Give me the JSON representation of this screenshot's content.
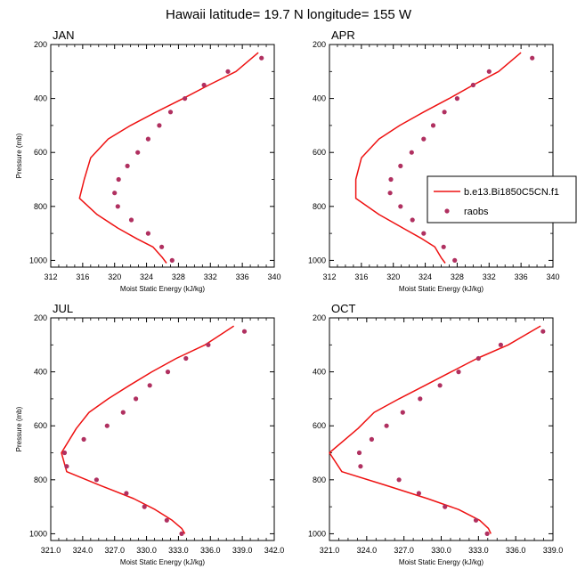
{
  "figure": {
    "title": "Hawaii  latitude= 19.7 N longitude= 155 W"
  },
  "legend": {
    "model_label": "b.e13.Bi1850C5CN.f1",
    "obs_label": "raobs",
    "placement": "right of APR panel"
  },
  "colors": {
    "model_line": "#ee1111",
    "obs_marker": "#b03060",
    "axis": "#000000"
  },
  "chart_data": [
    {
      "type": "line",
      "panel": "JAN",
      "title": "JAN",
      "xlabel": "Moist Static Energy (kJ/kg)",
      "ylabel": "Pressure (mb)",
      "xlim": [
        312,
        340
      ],
      "xticks": [
        "312",
        "316",
        "320",
        "324",
        "328",
        "332",
        "336",
        "340"
      ],
      "ylim": [
        1025,
        200
      ],
      "yticks": [
        "200",
        "400",
        "600",
        "800",
        "1000"
      ],
      "series": [
        {
          "name": "b.e13.Bi1850C5CN.f1",
          "style": "line",
          "x": [
            338.0,
            335.2,
            331.8,
            328.6,
            325.2,
            322.0,
            319.2,
            317.0,
            316.2,
            315.6,
            317.8,
            320.4,
            322.8,
            324.8,
            326.0,
            326.5
          ],
          "y": [
            230,
            300,
            350,
            400,
            450,
            500,
            550,
            620,
            700,
            770,
            830,
            880,
            920,
            950,
            990,
            1010
          ]
        },
        {
          "name": "raobs",
          "style": "markers",
          "x": [
            338.4,
            334.2,
            331.2,
            328.8,
            327.0,
            325.6,
            324.2,
            322.9,
            321.6,
            320.5,
            320.0,
            320.4,
            322.1,
            324.2,
            325.9,
            327.2
          ],
          "y": [
            250,
            300,
            350,
            400,
            450,
            500,
            550,
            600,
            650,
            700,
            750,
            800,
            850,
            900,
            950,
            1000
          ]
        }
      ]
    },
    {
      "type": "line",
      "panel": "APR",
      "title": "APR",
      "xlabel": "Moist Static Energy (kJ/kg)",
      "ylabel": "",
      "xlim": [
        312,
        340
      ],
      "xticks": [
        "312",
        "316",
        "320",
        "324",
        "328",
        "332",
        "336",
        "340"
      ],
      "ylim": [
        1025,
        200
      ],
      "yticks": [
        "200",
        "400",
        "600",
        "800",
        "1000"
      ],
      "series": [
        {
          "name": "b.e13.Bi1850C5CN.f1",
          "style": "line",
          "x": [
            336.0,
            333.2,
            330.0,
            327.0,
            323.8,
            320.8,
            318.2,
            316.0,
            315.3,
            315.3,
            318.2,
            321.2,
            323.6,
            325.2,
            326.0,
            326.5
          ],
          "y": [
            230,
            300,
            350,
            400,
            450,
            500,
            550,
            620,
            700,
            770,
            830,
            880,
            920,
            950,
            990,
            1010
          ]
        },
        {
          "name": "raobs",
          "style": "markers",
          "x": [
            337.4,
            332.0,
            330.0,
            328.0,
            326.4,
            325.0,
            323.8,
            322.3,
            320.9,
            319.7,
            319.6,
            320.9,
            322.4,
            323.8,
            326.3,
            327.7
          ],
          "y": [
            250,
            300,
            350,
            400,
            450,
            500,
            550,
            600,
            650,
            700,
            750,
            800,
            850,
            900,
            950,
            1000
          ]
        }
      ]
    },
    {
      "type": "line",
      "panel": "JUL",
      "title": "JUL",
      "xlabel": "Moist Static Energy (kJ/kg)",
      "ylabel": "Pressure (mb)",
      "xlim": [
        321,
        342
      ],
      "xticks": [
        "321.0",
        "324.0",
        "327.0",
        "330.0",
        "333.0",
        "336.0",
        "339.0",
        "342.0"
      ],
      "ylim": [
        1025,
        200
      ],
      "yticks": [
        "200",
        "400",
        "600",
        "800",
        "1000"
      ],
      "series": [
        {
          "name": "b.e13.Bi1850C5CN.f1",
          "style": "line",
          "x": [
            338.2,
            335.5,
            332.8,
            330.5,
            328.4,
            326.4,
            324.6,
            323.4,
            322.0,
            322.5,
            325.6,
            328.8,
            330.8,
            332.4,
            333.3,
            333.6
          ],
          "y": [
            230,
            300,
            350,
            400,
            450,
            500,
            550,
            610,
            700,
            770,
            820,
            870,
            910,
            950,
            980,
            1000
          ]
        },
        {
          "name": "raobs",
          "style": "markers",
          "x": [
            339.2,
            335.8,
            333.7,
            332.0,
            330.3,
            329.0,
            327.8,
            326.3,
            324.1,
            322.3,
            322.5,
            325.3,
            328.1,
            329.8,
            331.9,
            333.3
          ],
          "y": [
            250,
            300,
            350,
            400,
            450,
            500,
            550,
            600,
            650,
            700,
            750,
            800,
            850,
            900,
            950,
            1000
          ]
        }
      ]
    },
    {
      "type": "line",
      "panel": "OCT",
      "title": "OCT",
      "xlabel": "Moist Static Energy (kJ/kg)",
      "ylabel": "",
      "xlim": [
        321,
        339
      ],
      "xticks": [
        "321.0",
        "324.0",
        "327.0",
        "330.0",
        "333.0",
        "336.0",
        "339.0"
      ],
      "ylim": [
        1025,
        200
      ],
      "yticks": [
        "200",
        "400",
        "600",
        "800",
        "1000"
      ],
      "series": [
        {
          "name": "b.e13.Bi1850C5CN.f1",
          "style": "line",
          "x": [
            338.0,
            335.4,
            332.9,
            330.8,
            328.7,
            326.6,
            324.6,
            323.3,
            321.0,
            322.0,
            325.5,
            328.9,
            331.4,
            333.1,
            333.8,
            334.0
          ],
          "y": [
            230,
            300,
            350,
            400,
            450,
            500,
            550,
            610,
            700,
            770,
            820,
            870,
            910,
            950,
            980,
            1000
          ]
        },
        {
          "name": "raobs",
          "style": "markers",
          "x": [
            338.2,
            334.8,
            333.0,
            331.4,
            329.9,
            328.3,
            326.9,
            325.6,
            324.4,
            323.4,
            323.5,
            326.6,
            328.2,
            330.3,
            332.8,
            333.7
          ],
          "y": [
            250,
            300,
            350,
            400,
            450,
            500,
            550,
            600,
            650,
            700,
            750,
            800,
            850,
            900,
            950,
            1000
          ]
        }
      ]
    }
  ]
}
